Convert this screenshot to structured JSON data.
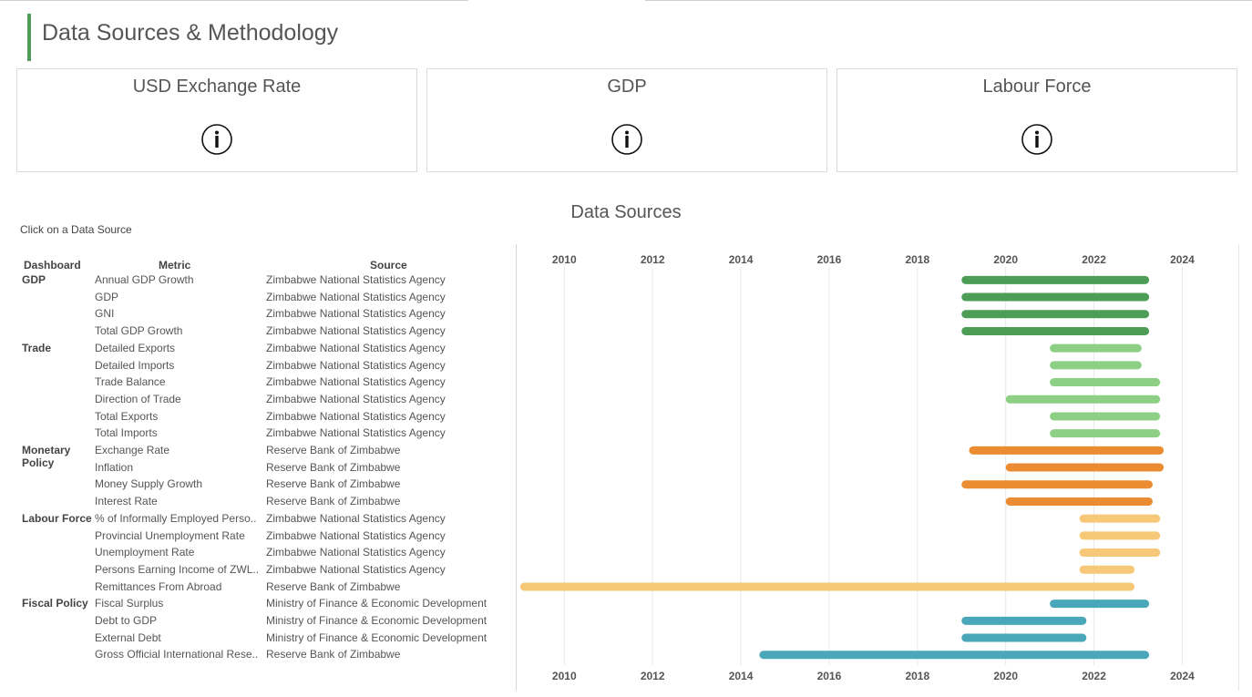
{
  "header": {
    "title": "Data Sources & Methodology"
  },
  "cards": [
    {
      "title": "USD Exchange Rate",
      "icon": "info-icon"
    },
    {
      "title": "GDP",
      "icon": "info-icon"
    },
    {
      "title": "Labour Force",
      "icon": "info-icon"
    }
  ],
  "sources_section": {
    "title": "Data Sources",
    "hint": "Click on a Data Source",
    "columns": {
      "dashboard": "Dashboard",
      "metric": "Metric",
      "source": "Source"
    }
  },
  "colors": {
    "gdp": "#4e9d57",
    "trade": "#8ccf85",
    "monetary": "#ec8c32",
    "labour": "#f6c877",
    "fiscal": "#4aa7b9",
    "title_accent": "#4a9c57"
  },
  "groups": [
    {
      "name": "GDP",
      "first_row": 0,
      "color_key": "gdp"
    },
    {
      "name": "Trade",
      "first_row": 4,
      "color_key": "trade"
    },
    {
      "name": "Monetary Policy",
      "first_row": 10,
      "color_key": "monetary"
    },
    {
      "name": "Labour Force",
      "first_row": 14,
      "color_key": "labour"
    },
    {
      "name": "Fiscal Policy",
      "first_row": 19,
      "color_key": "fiscal"
    }
  ],
  "rows": [
    {
      "metric": "Annual GDP Growth",
      "source": "Zimbabwe National Statistics Agency",
      "group": "gdp"
    },
    {
      "metric": "GDP",
      "source": "Zimbabwe National Statistics Agency",
      "group": "gdp"
    },
    {
      "metric": "GNI",
      "source": "Zimbabwe National Statistics Agency",
      "group": "gdp"
    },
    {
      "metric": "Total GDP Growth",
      "source": "Zimbabwe National Statistics Agency",
      "group": "gdp"
    },
    {
      "metric": "Detailed Exports",
      "source": "Zimbabwe National Statistics Agency",
      "group": "trade"
    },
    {
      "metric": "Detailed Imports",
      "source": "Zimbabwe National Statistics Agency",
      "group": "trade"
    },
    {
      "metric": "Trade Balance",
      "source": "Zimbabwe National Statistics Agency",
      "group": "trade"
    },
    {
      "metric": "Direction of Trade",
      "source": "Zimbabwe National Statistics Agency",
      "group": "trade"
    },
    {
      "metric": "Total Exports",
      "source": "Zimbabwe National Statistics Agency",
      "group": "trade"
    },
    {
      "metric": "Total Imports",
      "source": "Zimbabwe National Statistics Agency",
      "group": "trade"
    },
    {
      "metric": "Exchange Rate",
      "source": "Reserve Bank of Zimbabwe",
      "group": "monetary"
    },
    {
      "metric": "Inflation",
      "source": "Reserve Bank of Zimbabwe",
      "group": "monetary"
    },
    {
      "metric": "Money Supply Growth",
      "source": "Reserve Bank of Zimbabwe",
      "group": "monetary"
    },
    {
      "metric": "Interest Rate",
      "source": "Reserve Bank of Zimbabwe",
      "group": "monetary"
    },
    {
      "metric": "% of Informally Employed Perso..",
      "source": "Zimbabwe National Statistics Agency",
      "group": "labour"
    },
    {
      "metric": "Provincial Unemployment Rate",
      "source": "Zimbabwe National Statistics Agency",
      "group": "labour"
    },
    {
      "metric": "Unemployment Rate",
      "source": "Zimbabwe National Statistics Agency",
      "group": "labour"
    },
    {
      "metric": "Persons Earning Income of ZWL..",
      "source": "Zimbabwe National Statistics Agency",
      "group": "labour"
    },
    {
      "metric": "Remittances From Abroad",
      "source": "Reserve Bank of Zimbabwe",
      "group": "labour"
    },
    {
      "metric": "Fiscal Surplus",
      "source": "Ministry of Finance & Economic Development",
      "group": "fiscal"
    },
    {
      "metric": "Debt to GDP",
      "source": "Ministry of Finance & Economic Development",
      "group": "fiscal"
    },
    {
      "metric": "External Debt",
      "source": "Ministry of Finance & Economic Development",
      "group": "fiscal"
    },
    {
      "metric": "Gross Official International Rese..",
      "source": "Reserve Bank of Zimbabwe",
      "group": "fiscal"
    }
  ],
  "chart_data": {
    "type": "bar",
    "orientation": "horizontal-gantt",
    "x_ticks": [
      "2010",
      "2012",
      "2014",
      "2016",
      "2018",
      "2020",
      "2022",
      "2024"
    ],
    "xlim": [
      2008.9,
      2025.25
    ],
    "grid": true,
    "categories": [
      "Annual GDP Growth",
      "GDP",
      "GNI",
      "Total GDP Growth",
      "Detailed Exports",
      "Detailed Imports",
      "Trade Balance",
      "Direction of Trade",
      "Total Exports",
      "Total Imports",
      "Exchange Rate",
      "Inflation",
      "Money Supply Growth",
      "Interest Rate",
      "% of Informally Employed Perso..",
      "Provincial Unemployment Rate",
      "Unemployment Rate",
      "Persons Earning Income of ZWL..",
      "Remittances From Abroad",
      "Fiscal Surplus",
      "Debt to GDP",
      "External Debt",
      "Gross Official International Rese.."
    ],
    "ranges": [
      [
        2019.0,
        2023.25
      ],
      [
        2019.0,
        2023.25
      ],
      [
        2019.0,
        2023.25
      ],
      [
        2019.0,
        2023.25
      ],
      [
        2021.0,
        2023.08
      ],
      [
        2021.0,
        2023.08
      ],
      [
        2021.0,
        2023.5
      ],
      [
        2020.0,
        2023.5
      ],
      [
        2021.0,
        2023.5
      ],
      [
        2021.0,
        2023.5
      ],
      [
        2019.17,
        2023.58
      ],
      [
        2020.0,
        2023.58
      ],
      [
        2019.0,
        2023.33
      ],
      [
        2020.0,
        2023.33
      ],
      [
        2021.67,
        2023.5
      ],
      [
        2021.67,
        2023.5
      ],
      [
        2021.67,
        2023.5
      ],
      [
        2021.67,
        2022.92
      ],
      [
        2009.0,
        2022.92
      ],
      [
        2021.0,
        2023.25
      ],
      [
        2019.0,
        2021.83
      ],
      [
        2019.0,
        2021.83
      ],
      [
        2014.42,
        2023.25
      ]
    ]
  }
}
